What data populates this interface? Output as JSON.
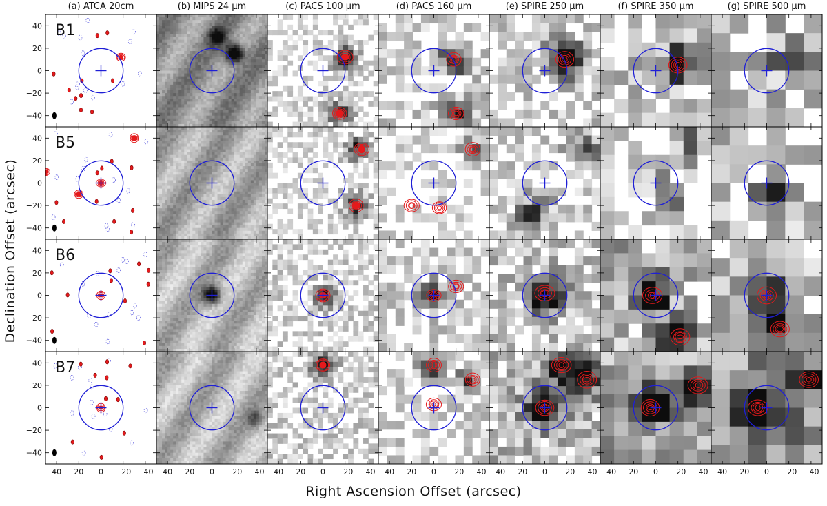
{
  "figure": {
    "x_axis_label": "Right Ascension Offset (arcsec)",
    "y_axis_label": "Declination Offset (arcsec)",
    "columns": [
      {
        "id": "atca",
        "title": "(a) ATCA 20cm"
      },
      {
        "id": "mips",
        "title": "(b) MIPS 24 μm"
      },
      {
        "id": "pacs100",
        "title": "(c) PACS 100 μm"
      },
      {
        "id": "pacs160",
        "title": "(d) PACS 160 μm"
      },
      {
        "id": "spire250",
        "title": "(e) SPIRE 250 μm"
      },
      {
        "id": "spire350",
        "title": "(f) SPIRE 350 μm"
      },
      {
        "id": "spire500",
        "title": "(g) SPIRE 500 μm"
      }
    ],
    "rows": [
      {
        "id": "B1",
        "label": "B1"
      },
      {
        "id": "B5",
        "label": "B5"
      },
      {
        "id": "B6",
        "label": "B6"
      },
      {
        "id": "B7",
        "label": "B7"
      }
    ],
    "x_ticks": [
      "40",
      "20",
      "0",
      "−20",
      "−40"
    ],
    "y_ticks": [
      "40",
      "20",
      "0",
      "−20",
      "−40"
    ],
    "axis_range": {
      "x": [
        50,
        -50
      ],
      "y": [
        -50,
        50
      ]
    },
    "circle_radius_arcsec": 20,
    "colors": {
      "contour": "#e41a1c",
      "marker": "#1f1fd6",
      "negative_contour": "#3a3ad8",
      "frame": "#000000"
    }
  }
}
